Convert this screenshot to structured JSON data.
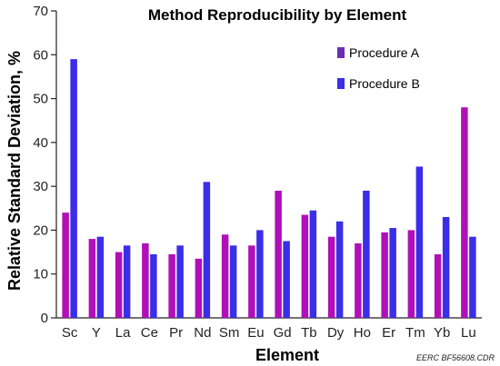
{
  "chart_data": {
    "type": "bar",
    "title": "Method Reproducibility by Element",
    "xlabel": "Element",
    "ylabel": "Relative Standard Deviation, %",
    "ylim": [
      0,
      70
    ],
    "yticks": [
      0,
      10,
      20,
      30,
      40,
      50,
      60,
      70
    ],
    "grid": false,
    "legend_position": "top-right",
    "categories": [
      "Sc",
      "Y",
      "La",
      "Ce",
      "Pr",
      "Nd",
      "Sm",
      "Eu",
      "Gd",
      "Tb",
      "Dy",
      "Ho",
      "Er",
      "Tm",
      "Yb",
      "Lu"
    ],
    "series": [
      {
        "name": "Procedure A",
        "color": "#b010b8",
        "values": [
          24,
          18,
          15,
          17,
          14.5,
          13.5,
          19,
          16.5,
          29,
          23.5,
          18.5,
          17,
          19.5,
          20,
          14.5,
          48
        ]
      },
      {
        "name": "Procedure B",
        "color": "#3a2ee8",
        "values": [
          59,
          18.5,
          16.5,
          14.5,
          16.5,
          31,
          16.5,
          20,
          17.5,
          24.5,
          22,
          29,
          20.5,
          34.5,
          23,
          18.5
        ]
      }
    ],
    "legend_swatches": {
      "Procedure A": "#6a2fb0",
      "Procedure B": "#3a2ee8"
    },
    "credit": "EERC BF56608.CDR"
  }
}
